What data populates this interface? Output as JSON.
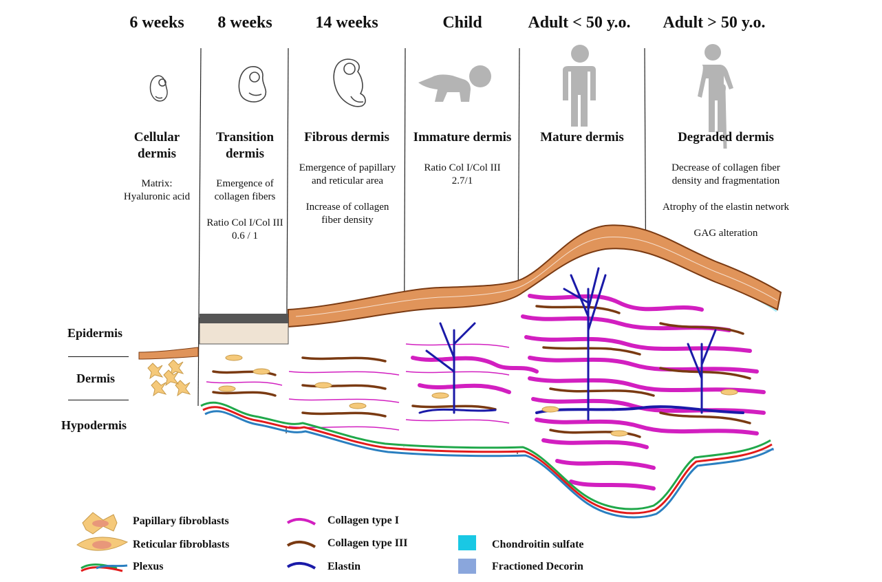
{
  "stages": [
    {
      "title": "6 weeks",
      "name": "Cellular dermis",
      "desc": [
        "Matrix:",
        "Hyaluronic acid"
      ]
    },
    {
      "title": "8 weeks",
      "name": "Transition dermis",
      "desc": [
        "Emergence of",
        "collagen fibers",
        "",
        "Ratio Col I/Col III",
        "0.6 / 1"
      ]
    },
    {
      "title": "14 weeks",
      "name": "Fibrous dermis",
      "desc": [
        "Emergence of papillary",
        "and reticular area",
        "",
        "Increase of collagen",
        "fiber density"
      ]
    },
    {
      "title": "Child",
      "name": "Immature dermis",
      "desc": [
        "Ratio Col I/Col III",
        "2.7/1"
      ]
    },
    {
      "title": "Adult < 50 y.o.",
      "name": "Mature dermis",
      "desc": []
    },
    {
      "title": "Adult > 50 y.o.",
      "name": "Degraded dermis",
      "desc": [
        "Decrease of collagen fiber",
        "density and fragmentation",
        "",
        "Atrophy of the elastin network",
        "",
        "GAG alteration"
      ]
    }
  ],
  "layers": {
    "epidermis": "Epidermis",
    "dermis": "Dermis",
    "hypodermis": "Hypodermis"
  },
  "legend": {
    "papillary": "Papillary fibroblasts",
    "reticular": "Reticular fibroblasts",
    "plexus": "Plexus",
    "col1": "Collagen type I",
    "col3": "Collagen type III",
    "elastin": "Elastin",
    "chondroitin": "Chondroitin sulfate",
    "decorin": "Fractioned Decorin"
  },
  "colors": {
    "collagen_I": "#d21fc0",
    "collagen_III": "#7a3a12",
    "elastin": "#1a1aa8",
    "chondroitin": "#19c8e4",
    "decorin": "#8aa6dc",
    "epidermis": "#e0945a",
    "fibroblast": "#f5c97a",
    "plexus_red": "#e21b1b",
    "plexus_green": "#20a84a",
    "plexus_blue": "#2a7fc0",
    "icon_gray": "#b4b4b4"
  },
  "icons": [
    "embryo-6wk-icon",
    "embryo-8wk-icon",
    "fetus-14wk-icon",
    "crawling-child-icon",
    "standing-adult-icon",
    "elderly-cane-icon"
  ]
}
